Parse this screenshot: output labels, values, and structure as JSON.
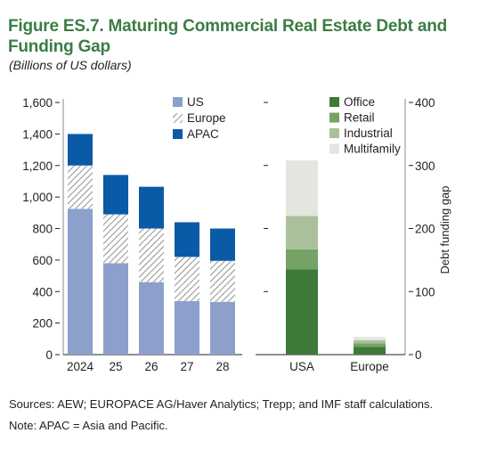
{
  "title": "Figure ES.7. Maturing Commercial Real Estate Debt and Funding Gap",
  "subtitle": "(Billions of US dollars)",
  "sources": "Sources: AEW; EUROPACE AG/Haver Analytics; Trepp; and IMF staff calculations.",
  "note": "Note: APAC = Asia and Pacific.",
  "colors": {
    "us": "#8da0cb",
    "apac": "#0a5aa8",
    "europe_hatch": "#9a9a9a",
    "office": "#3d7a38",
    "retail": "#76a265",
    "industrial": "#a9c09a",
    "multifamily": "#e3e6df"
  },
  "chart_data": [
    {
      "type": "bar",
      "stacked": true,
      "categories": [
        "2024",
        "25",
        "26",
        "27",
        "28"
      ],
      "series": [
        {
          "name": "US",
          "values": [
            925,
            580,
            460,
            340,
            335
          ]
        },
        {
          "name": "Europe",
          "values": [
            275,
            310,
            340,
            280,
            260
          ]
        },
        {
          "name": "APAC",
          "values": [
            200,
            250,
            265,
            220,
            205
          ]
        }
      ],
      "ylim": [
        0,
        1600
      ],
      "yticks": [
        "0",
        "200",
        "400",
        "600",
        "800",
        "1,000",
        "1,200",
        "1,400",
        "1,600"
      ],
      "ytick_values": [
        0,
        200,
        400,
        600,
        800,
        1000,
        1200,
        1400,
        1600
      ],
      "legend": "top-right",
      "grid": false
    },
    {
      "type": "bar",
      "stacked": true,
      "categories": [
        "USA",
        "Europe"
      ],
      "series": [
        {
          "name": "Office",
          "values": [
            135,
            12
          ]
        },
        {
          "name": "Retail",
          "values": [
            32,
            6
          ]
        },
        {
          "name": "Industrial",
          "values": [
            53,
            5
          ]
        },
        {
          "name": "Multifamily",
          "values": [
            88,
            5
          ]
        }
      ],
      "ylabel": "Debt funding gap",
      "ylim": [
        0,
        400
      ],
      "yticks": [
        "0",
        "100",
        "200",
        "300",
        "400"
      ],
      "ytick_values": [
        0,
        100,
        200,
        300,
        400
      ],
      "legend": "top-left",
      "grid": false
    }
  ]
}
